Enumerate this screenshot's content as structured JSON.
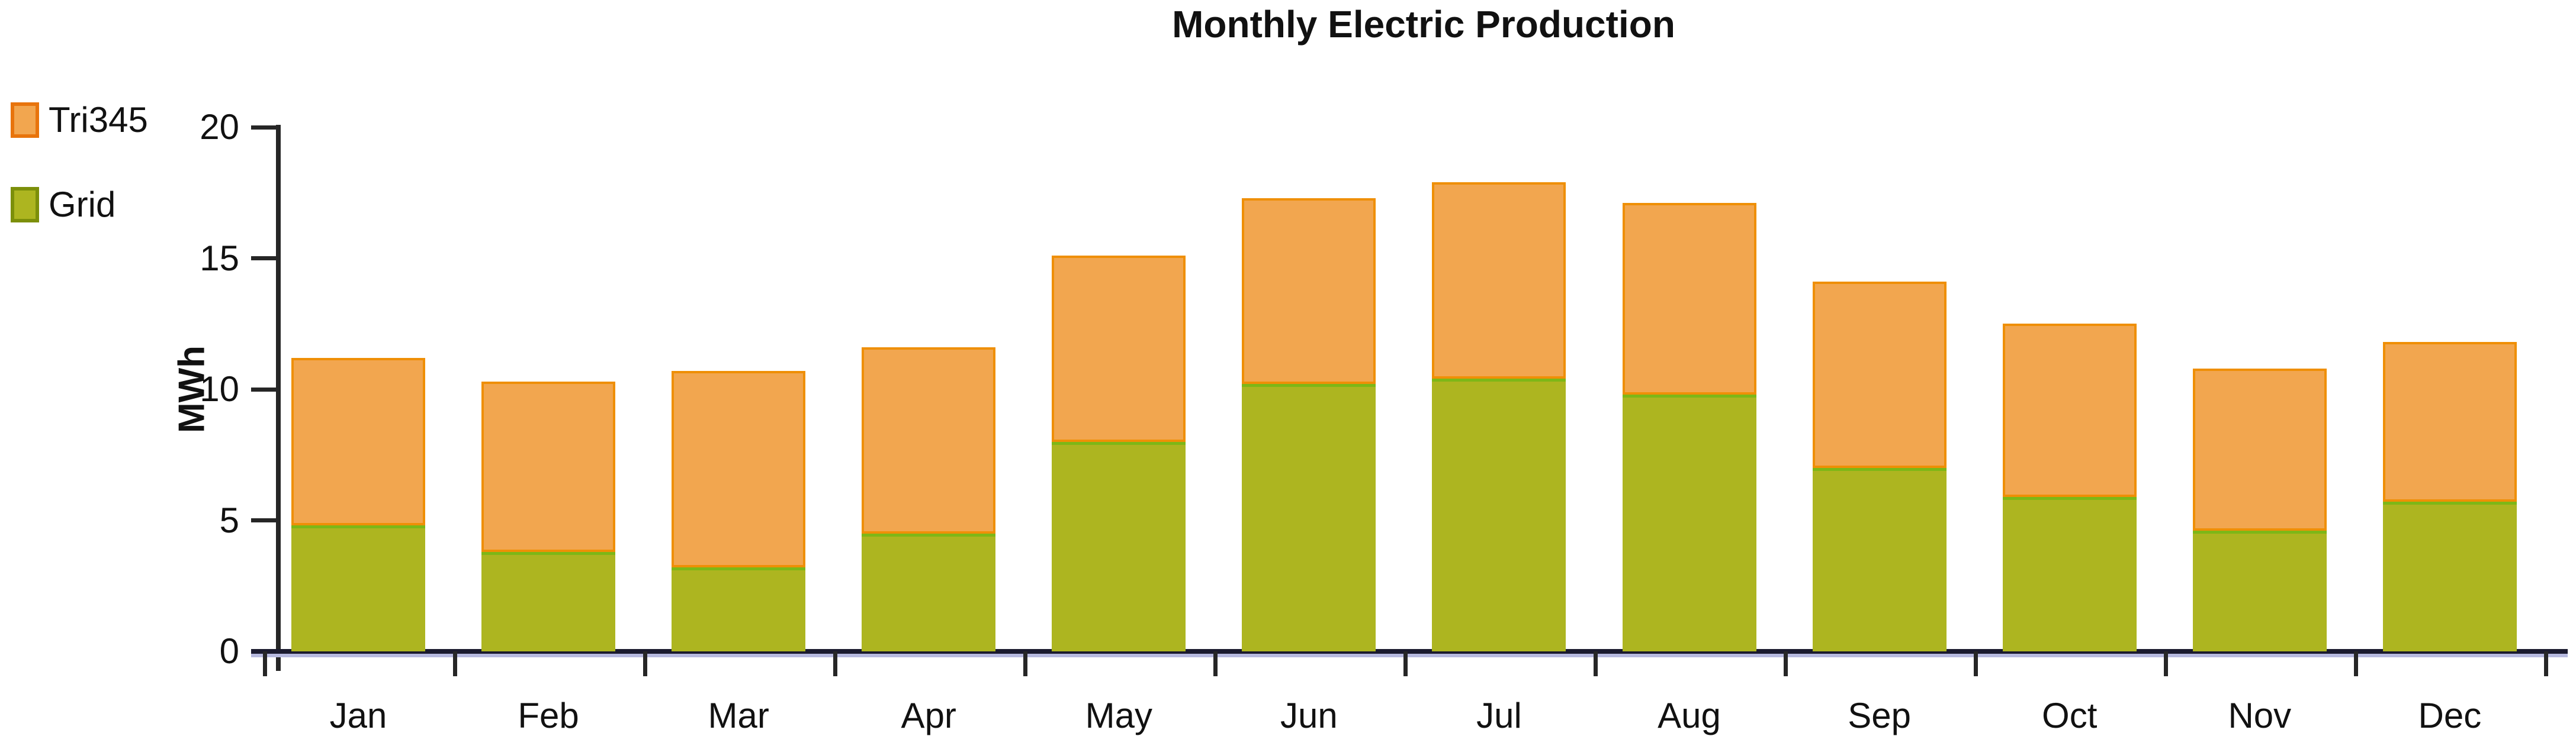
{
  "title": "Monthly Electric Production",
  "y_axis": {
    "label": "MWh",
    "tick_labels": [
      "0",
      "5",
      "10",
      "15",
      "20"
    ]
  },
  "legend": {
    "items": [
      {
        "label": "Tri345",
        "fill": "#f2a64f",
        "border": "#e8740c"
      },
      {
        "label": "Grid",
        "fill": "#adb520",
        "border": "#7c8f0a"
      }
    ]
  },
  "chart_data": {
    "type": "bar",
    "stacked": true,
    "title": "Monthly Electric Production",
    "xlabel": "",
    "ylabel": "MWh",
    "categories": [
      "Jan",
      "Feb",
      "Mar",
      "Apr",
      "May",
      "Jun",
      "Jul",
      "Aug",
      "Sep",
      "Oct",
      "Nov",
      "Dec"
    ],
    "series": [
      {
        "name": "Grid",
        "color": "#adb520",
        "edge_color": "#7db717",
        "values": [
          4.8,
          3.8,
          3.2,
          4.5,
          8.0,
          10.2,
          10.4,
          9.8,
          7.0,
          5.9,
          4.6,
          5.7
        ]
      },
      {
        "name": "Tri345",
        "color": "#f2a64f",
        "edge_color": "#ef8f06",
        "values": [
          6.4,
          6.5,
          7.5,
          7.1,
          7.1,
          7.1,
          7.5,
          7.3,
          7.1,
          6.6,
          6.2,
          6.1
        ]
      }
    ],
    "stack_totals": [
      11.2,
      10.3,
      10.7,
      11.6,
      15.1,
      17.3,
      17.9,
      17.1,
      14.1,
      12.5,
      10.8,
      11.8
    ],
    "ylim": [
      0,
      20
    ],
    "yticks": [
      0,
      5,
      10,
      15,
      20
    ],
    "grid": false,
    "legend_position": "top-left"
  }
}
